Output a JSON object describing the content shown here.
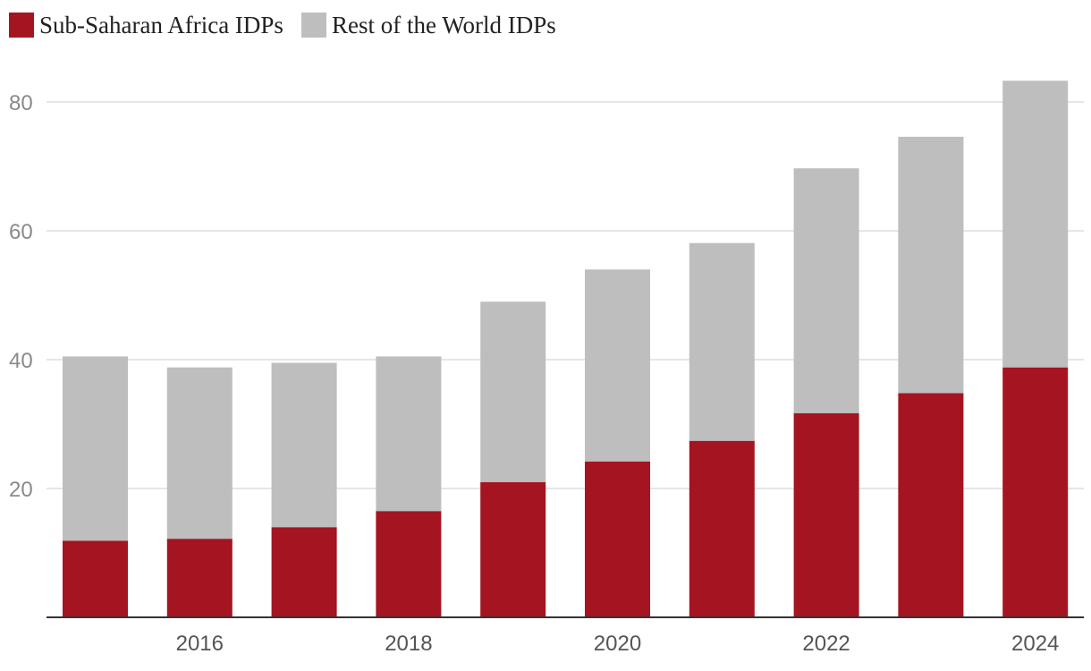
{
  "chart_data": {
    "type": "bar",
    "stacked": true,
    "title": "",
    "xlabel": "",
    "ylabel": "",
    "ylim": [
      0,
      83
    ],
    "yticks": [
      20,
      40,
      60,
      80
    ],
    "categories": [
      "2015",
      "2016",
      "2017",
      "2018",
      "2019",
      "2020",
      "2021",
      "2022",
      "2023",
      "2024"
    ],
    "x_tick_labels": [
      "",
      "2016",
      "",
      "2018",
      "",
      "2020",
      "",
      "2022",
      "",
      "2024"
    ],
    "legend_position": "top-left",
    "grid": true,
    "series": [
      {
        "name": "Sub-Saharan Africa IDPs",
        "color": "#a51421",
        "values": [
          11.9,
          12.2,
          14.0,
          16.5,
          21.0,
          24.2,
          27.4,
          31.7,
          34.8,
          38.8
        ]
      },
      {
        "name": "Rest of the World IDPs",
        "color": "#bebebe",
        "values": [
          28.6,
          26.6,
          25.5,
          24.0,
          28.0,
          29.8,
          30.7,
          38.0,
          39.8,
          44.5
        ]
      }
    ]
  }
}
